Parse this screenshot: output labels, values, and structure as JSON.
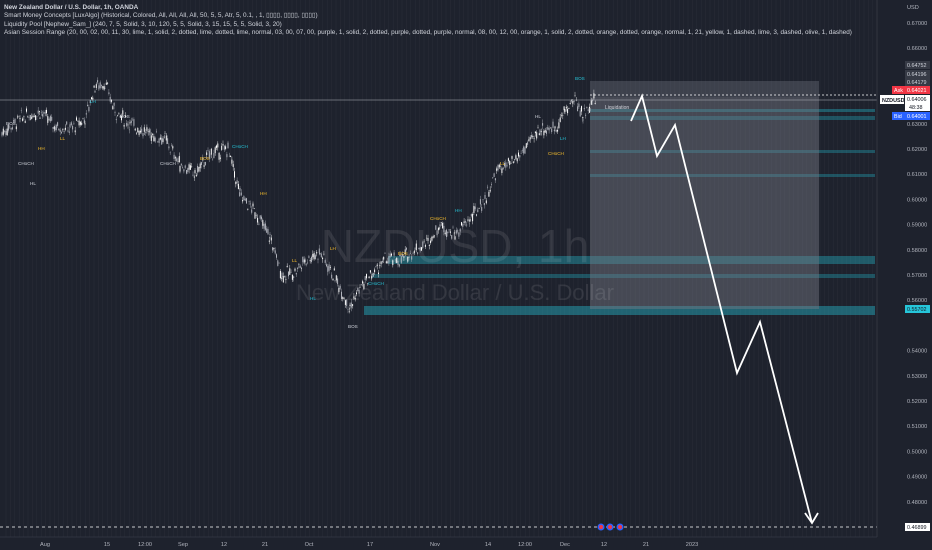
{
  "legend": {
    "symbol_line": "New Zealand Dollar / U.S. Dollar, 1h, OANDA",
    "indicator1": "Smart Money Concepts [LuxAlgo] (Historical, Colored, All, All, All, All, 50, 5, 5, Atr, 5, 0.1, , 1, ▯▯▯▯, ▯▯▯▯, ▯▯▯▯)",
    "indicator2": "Liquidity Pool [Nephew_Sam_] (240, 7, 5, Solid, 3, 10, 120, 5, 5, Solid, 3, 15, 15, 5, 5, Solid, 3, 20)",
    "indicator3": "Asian Session Range (20, 00, 02, 00, 11, 30, lime, 1, solid, 2, dotted, lime, dotted, lime, normal, 03, 00, 07, 00, purple, 1, solid, 2, dotted, purple, dotted, purple, normal, 08, 00, 12, 00, orange, 1, solid, 2, dotted, orange, dotted, orange, normal, 1, 21, yellow, 1, dashed, lime, 3, dashed, olive, 1, dashed)"
  },
  "watermark": {
    "ticker": "NZDUSD, 1h",
    "name": "New Zealand Dollar / U.S. Dollar"
  },
  "price_axis": {
    "currency": "USD",
    "ticks": [
      "0.67000",
      "0.66000",
      "0.64000",
      "0.63000",
      "0.62000",
      "0.61000",
      "0.60000",
      "0.59000",
      "0.58000",
      "0.57000",
      "0.56000",
      "0.54000",
      "0.53000",
      "0.52000",
      "0.51000",
      "0.50000",
      "0.49000",
      "0.48000",
      "0.47000"
    ]
  },
  "price_tags": {
    "p1": "0.64752",
    "p2": "0.64196",
    "p3": "0.64179",
    "ask_label": "Ask",
    "ask": "0.64021",
    "symbol": "NZDUSD",
    "last": "0.64006",
    "countdown": "48:38",
    "bid_label": "Bid",
    "bid": "0.64001",
    "support": "0.55702",
    "target": "0.46899"
  },
  "time_axis": {
    "labels": [
      "Aug",
      "15",
      "12:00",
      "Sep",
      "12",
      "21",
      "Oct",
      "17",
      "Nov",
      "14",
      "12:00",
      "Dec",
      "12",
      "21",
      "2023"
    ]
  },
  "annotations": {
    "structure": [
      "BOS",
      "CHoCH",
      "HH",
      "LL",
      "HL",
      "LH",
      "BOS",
      "CHoCH"
    ],
    "liquidation": "Liquidation"
  },
  "colors": {
    "background": "#1e222d",
    "candle_bull": "#ffffff",
    "candle_bear": "#b2b5be",
    "zone": "#26c6da",
    "ask": "#f23645",
    "bid": "#2962ff",
    "projection": "#ffffff"
  }
}
